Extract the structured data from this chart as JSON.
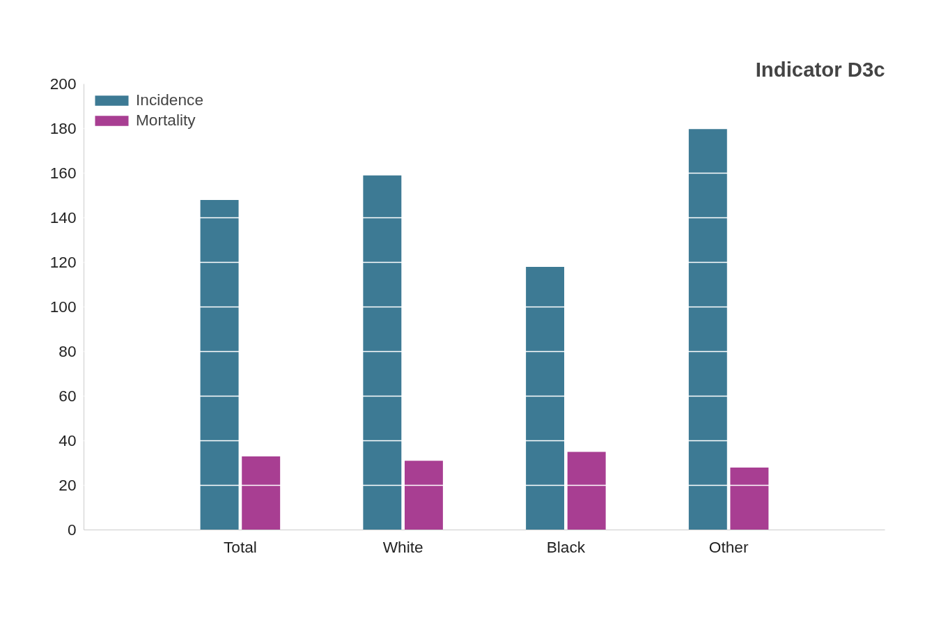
{
  "chart_data": {
    "type": "bar",
    "title": "Indicator D3c",
    "categories": [
      "Total",
      "White",
      "Black",
      "Other"
    ],
    "series": [
      {
        "name": "Incidence",
        "color": "#3d7a94",
        "values": [
          148,
          159,
          118,
          180
        ]
      },
      {
        "name": "Mortality",
        "color": "#a83e92",
        "values": [
          33,
          31,
          35,
          28
        ]
      }
    ],
    "ylim": [
      0,
      200
    ],
    "yticks": [
      0,
      20,
      40,
      60,
      80,
      100,
      120,
      140,
      160,
      180,
      200
    ],
    "grid": "y",
    "legend": "top left"
  }
}
